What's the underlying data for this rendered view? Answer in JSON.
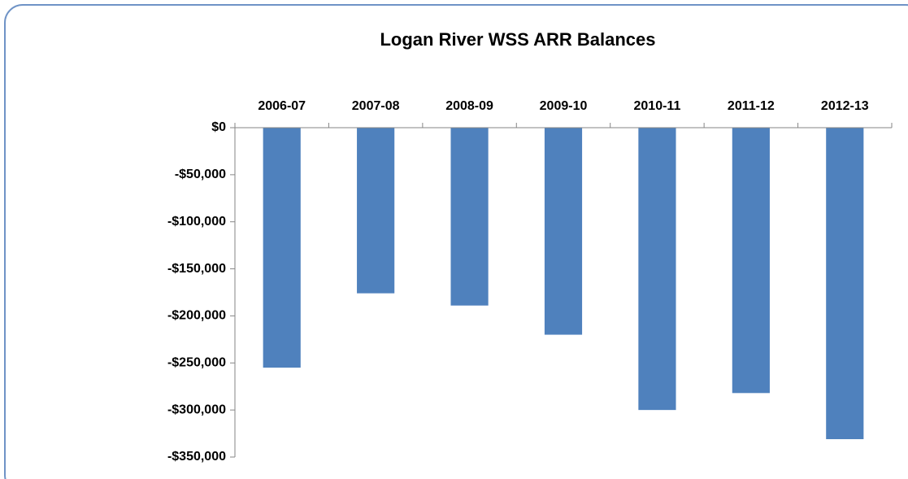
{
  "chart_data": {
    "type": "bar",
    "title": "Logan River WSS ARR Balances",
    "categories": [
      "2006-07",
      "2007-08",
      "2008-09",
      "2009-10",
      "2010-11",
      "2011-12",
      "2012-13"
    ],
    "values": [
      -255000,
      -176000,
      -189000,
      -220000,
      -300000,
      -282000,
      -331000
    ],
    "color": "#4f81bd",
    "ylim": [
      -350000,
      0
    ],
    "yticks": [
      {
        "value": 0,
        "label": "$0"
      },
      {
        "value": -50000,
        "label": "-$50,000"
      },
      {
        "value": -100000,
        "label": "-$100,000"
      },
      {
        "value": -150000,
        "label": "-$150,000"
      },
      {
        "value": -200000,
        "label": "-$200,000"
      },
      {
        "value": -250000,
        "label": "-$250,000"
      },
      {
        "value": -300000,
        "label": "-$300,000"
      },
      {
        "value": -350000,
        "label": "-$350,000"
      }
    ],
    "grid": false
  }
}
